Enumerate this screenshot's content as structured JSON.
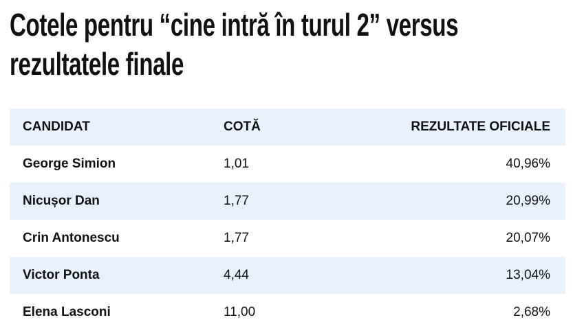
{
  "header": {
    "title_lines": [
      "Cotele pentru “cine intră în turul 2” versus",
      "rezultatele finale"
    ]
  },
  "table": {
    "columns": [
      "CANDIDAT",
      "COTĂ",
      "REZULTATE OFICIALE"
    ],
    "rows": [
      [
        "George Simion",
        "1,01",
        "40,96%"
      ],
      [
        "Nicușor Dan",
        "1,77",
        "20,99%"
      ],
      [
        "Crin Antonescu",
        "1,77",
        "20,07%"
      ],
      [
        "Victor Ponta",
        "4,44",
        "13,04%"
      ],
      [
        "Elena Lasconi",
        "11,00",
        "2,68%"
      ]
    ]
  }
}
